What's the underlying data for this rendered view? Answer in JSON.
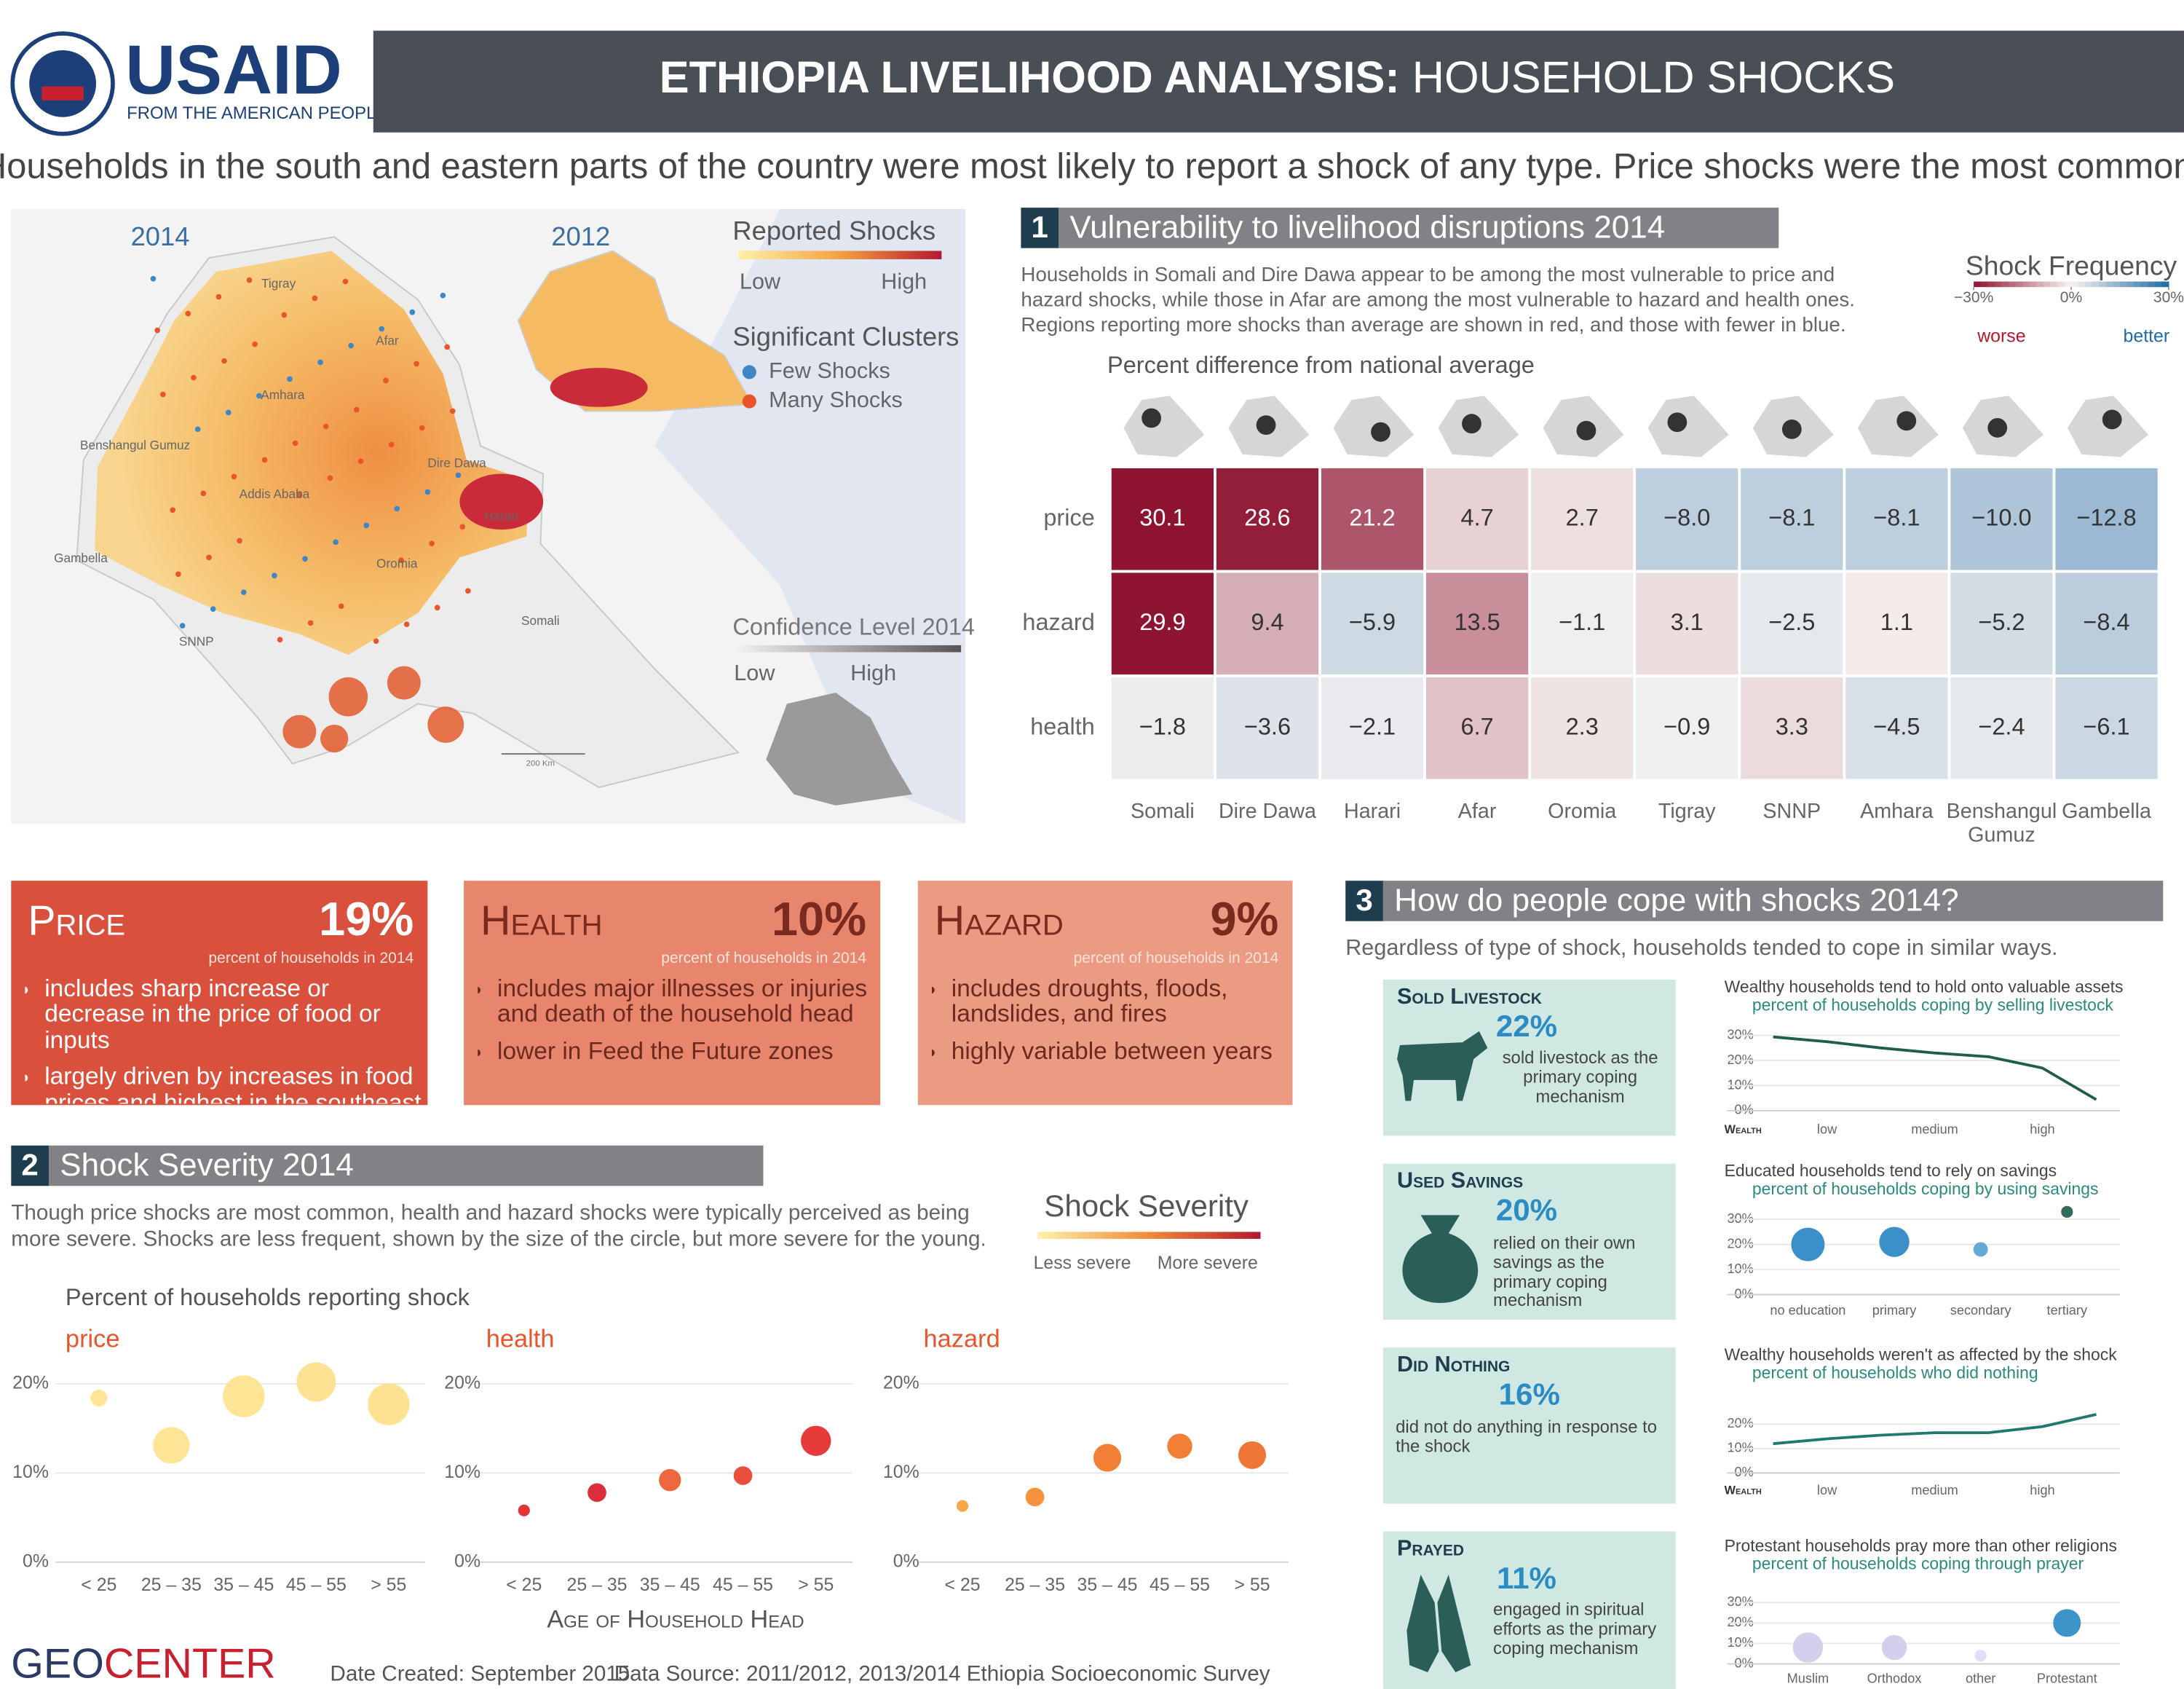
{
  "header": {
    "logo": "USAID",
    "logo_tagline": "FROM THE AMERICAN PEOPLE",
    "title_bold": "ETHIOPIA LIVELIHOOD ANALYSIS:",
    "title_rest": "HOUSEHOLD SHOCKS"
  },
  "subtitle": "Households in the south and eastern parts of the country were most likely to report a shock of any type. Price shocks were the most common.",
  "map": {
    "year_left": "2014",
    "year_right": "2012",
    "legend_title": "Reported Shocks",
    "low": "Low",
    "high": "High",
    "clusters_title": "Significant Clusters",
    "few": "Few Shocks",
    "many": "Many Shocks",
    "confidence_title": "Confidence Level 2014",
    "conf_low": "Low",
    "conf_high": "High",
    "regions": [
      "Tigray",
      "Afar",
      "Amhara",
      "Benshangul Gumuz",
      "Addis Ababa",
      "Dire Dawa",
      "Harari",
      "Gambella",
      "Oromia",
      "SNNP",
      "Somali"
    ],
    "scale": "200 Km"
  },
  "section1": {
    "number": "1",
    "title": "Vulnerability to livelihood disruptions 2014",
    "description": [
      "Households in Somali and Dire Dawa appear to be among the most vulnerable to price and",
      "hazard shocks, while those in Afar are among the most vulnerable to hazard and health ones.",
      "Regions reporting more shocks than average are shown in red, and those with fewer in blue."
    ]
  },
  "cards": [
    {
      "title": "Price",
      "pct": "19%",
      "note": "percent of households in 2014",
      "bullets": [
        "includes sharp increase or decrease in the price of food or inputs",
        "largely driven by increases in food prices and highest in the southeast"
      ],
      "color": "#d9513d",
      "title_color": "#ffffff"
    },
    {
      "title": "Health",
      "pct": "10%",
      "note": "percent of households in 2014",
      "bullets": [
        "includes major illnesses or injuries and death of the household head",
        "lower in Feed the Future zones"
      ],
      "color": "#e8866d",
      "title_color": "#7a2a1f"
    },
    {
      "title": "Hazard",
      "pct": "9%",
      "note": "percent of households in 2014",
      "bullets": [
        "includes droughts, floods, landslides, and fires",
        "highly variable between years"
      ],
      "color": "#ea9b82",
      "title_color": "#7a2a1f"
    }
  ],
  "section2": {
    "number": "2",
    "title": "Shock Severity 2014",
    "description": [
      "Though price shocks are most common, health and hazard shocks were typically perceived as being",
      "more severe. Shocks are less frequent, shown by the size of the circle,  but more severe for the young."
    ],
    "legend_title": "Shock Severity",
    "legend_low": "Less severe",
    "legend_high": "More severe",
    "chart_title": "Percent of households reporting shock",
    "x_label": "Age of Household Head"
  },
  "section3": {
    "number": "3",
    "title": "How do people cope with shocks 2014?",
    "description": "Regardless of  type of shock, households tended to cope in similar ways.",
    "cards": [
      {
        "title": "Sold Livestock",
        "pct": "22%",
        "text": "sold livestock as the primary coping mechanism"
      },
      {
        "title": "Used Savings",
        "pct": "20%",
        "text": "relied on their own savings as the primary coping mechanism"
      },
      {
        "title": "Did Nothing",
        "pct": "16%",
        "text": "did not do anything in response to the shock"
      },
      {
        "title": "Prayed",
        "pct": "11%",
        "text": "engaged in spiritual efforts as the primary coping mechanism"
      }
    ]
  },
  "chart_data": [
    {
      "type": "heatmap",
      "title": "Percent difference from national average",
      "legend_title": "Shock Frequency",
      "legend_ticks": [
        {
          "value": -30,
          "label": "−30%"
        },
        {
          "value": 0,
          "label": "0%"
        },
        {
          "value": 30,
          "label": "30%"
        }
      ],
      "legend_low": "worse",
      "legend_high": "better",
      "colors": {
        "worse": "#8e1330",
        "neutral": "#f7f4f2",
        "better": "#1f6aa8"
      },
      "rows": [
        "price",
        "hazard",
        "health"
      ],
      "columns": [
        "Somali",
        "Dire Dawa",
        "Harari",
        "Afar",
        "Oromia",
        "Tigray",
        "SNNP",
        "Amhara",
        "Benshangul Gumuz",
        "Gambella"
      ],
      "values": [
        [
          30.1,
          28.6,
          21.2,
          4.7,
          2.7,
          -8.0,
          -8.1,
          -8.1,
          -10.0,
          -12.8
        ],
        [
          29.9,
          9.4,
          -5.9,
          13.5,
          -1.1,
          3.1,
          -2.5,
          1.1,
          -5.2,
          -8.4
        ],
        [
          -1.8,
          -3.6,
          -2.1,
          6.7,
          2.3,
          -0.9,
          3.3,
          -4.5,
          -2.4,
          -6.1
        ]
      ],
      "value_labels": [
        [
          "30.1",
          "28.6",
          "21.2",
          "4.7",
          "2.7",
          "−8.0",
          "−8.1",
          "−8.1",
          "−10.0",
          "−12.8"
        ],
        [
          "29.9",
          "9.4",
          "−5.9",
          "13.5",
          "−1.1",
          "3.1",
          "−2.5",
          "1.1",
          "−5.2",
          "−8.4"
        ],
        [
          "−1.8",
          "−3.6",
          "−2.1",
          "6.7",
          "2.3",
          "−0.9",
          "3.3",
          "−4.5",
          "−2.4",
          "−6.1"
        ]
      ]
    },
    {
      "type": "bubble",
      "title": "price",
      "categories": [
        "< 25",
        "25 – 35",
        "35 – 45",
        "45 – 55",
        "> 55"
      ],
      "values": [
        18.4,
        13.1,
        18.6,
        20.2,
        17.7
      ],
      "sizes": [
        4,
        19,
        25,
        22,
        25
      ],
      "colors": [
        "#fde38c",
        "#fde38c",
        "#fde38c",
        "#fde08a",
        "#fde08a"
      ],
      "ylim": [
        0,
        21.5
      ],
      "yticks": [
        {
          "value": 0,
          "label": "0%"
        },
        {
          "value": 10,
          "label": "10%"
        },
        {
          "value": 20,
          "label": "20%"
        }
      ],
      "grid": true
    },
    {
      "type": "bubble",
      "title": "health",
      "categories": [
        "< 25",
        "25 – 35",
        "35 – 45",
        "45 – 55",
        "> 55"
      ],
      "values": [
        5.8,
        7.8,
        9.2,
        9.7,
        13.6
      ],
      "sizes": [
        2,
        5,
        7,
        5,
        13
      ],
      "colors": [
        "#e0242a",
        "#d81e2a",
        "#ee5a2e",
        "#e8402a",
        "#e52a2a"
      ],
      "ylim": [
        0,
        21.5
      ],
      "yticks": [
        {
          "value": 0,
          "label": "0%"
        },
        {
          "value": 10,
          "label": "10%"
        },
        {
          "value": 20,
          "label": "20%"
        }
      ],
      "grid": true
    },
    {
      "type": "bubble",
      "title": "hazard",
      "categories": [
        "< 25",
        "25 – 35",
        "35 – 45",
        "45 – 55",
        "> 55"
      ],
      "values": [
        6.3,
        7.3,
        11.7,
        13.0,
        12.0
      ],
      "sizes": [
        2,
        5,
        11,
        9,
        11
      ],
      "colors": [
        "#f7a03a",
        "#f58a2e",
        "#f07525",
        "#f07525",
        "#ee6a24"
      ],
      "ylim": [
        0,
        21.5
      ],
      "yticks": [
        {
          "value": 0,
          "label": "0%"
        },
        {
          "value": 10,
          "label": "10%"
        },
        {
          "value": 20,
          "label": "20%"
        }
      ],
      "grid": true
    },
    {
      "type": "line",
      "title": "Wealthy households tend to hold onto valuable assets",
      "subtitle": "percent of households coping by selling livestock",
      "x_label": "Wealth",
      "x": [
        0,
        1,
        2,
        3,
        4,
        5,
        6
      ],
      "values": [
        29.4,
        27.5,
        25,
        23,
        21.5,
        17,
        4.4
      ],
      "color": "#1f5e4f",
      "xlim": [
        0,
        6
      ],
      "xticks": [
        {
          "value": 1,
          "label": "low"
        },
        {
          "value": 3,
          "label": "medium"
        },
        {
          "value": 5,
          "label": "high"
        }
      ],
      "ylim": [
        0,
        30
      ],
      "yticks": [
        {
          "value": 0,
          "label": "0%"
        },
        {
          "value": 10,
          "label": "10%"
        },
        {
          "value": 20,
          "label": "20%"
        },
        {
          "value": 30,
          "label": "30%"
        }
      ],
      "grid": true
    },
    {
      "type": "bubble",
      "title": "Educated households tend to rely on savings",
      "subtitle": "percent of households coping by using savings",
      "categories": [
        "no education",
        "primary",
        "secondary",
        "tertiary"
      ],
      "values": [
        20,
        21,
        18,
        33
      ],
      "sizes": [
        16,
        13,
        3,
        2
      ],
      "colors": [
        "#2b87c4",
        "#2b87c4",
        "#5aa3d4",
        "#1f5e4f"
      ],
      "ylim": [
        0,
        30
      ],
      "yticks": [
        {
          "value": 0,
          "label": "0%"
        },
        {
          "value": 10,
          "label": "10%"
        },
        {
          "value": 20,
          "label": "20%"
        },
        {
          "value": 30,
          "label": "30%"
        }
      ],
      "grid": true
    },
    {
      "type": "line",
      "title": "Wealthy households weren't as affected by the shock",
      "subtitle": "percent of households who did nothing",
      "x_label": "Wealth",
      "x": [
        0,
        1,
        2,
        3,
        4,
        5,
        6
      ],
      "values": [
        12,
        14,
        15.5,
        16.5,
        16.5,
        19,
        24
      ],
      "color": "#1f7a6e",
      "xlim": [
        0,
        6
      ],
      "xticks": [
        {
          "value": 1,
          "label": "low"
        },
        {
          "value": 3,
          "label": "medium"
        },
        {
          "value": 5,
          "label": "high"
        }
      ],
      "ylim": [
        0,
        20
      ],
      "yticks": [
        {
          "value": 0,
          "label": "0%"
        },
        {
          "value": 10,
          "label": "10%"
        },
        {
          "value": 20,
          "label": "20%"
        }
      ],
      "grid": true
    },
    {
      "type": "bubble",
      "title": "Protestant households pray more than other religions",
      "subtitle": "percent of households coping through prayer",
      "categories": [
        "Muslim",
        "Orthodox",
        "other",
        "Protestant"
      ],
      "values": [
        8,
        8,
        4,
        20
      ],
      "sizes": [
        13,
        9,
        2,
        11
      ],
      "colors": [
        "#cfcbea",
        "#cfcbea",
        "#dedcf0",
        "#2b8cc4"
      ],
      "ylim": [
        0,
        30
      ],
      "yticks": [
        {
          "value": 0,
          "label": "0%"
        },
        {
          "value": 10,
          "label": "10%"
        },
        {
          "value": 20,
          "label": "20%"
        },
        {
          "value": 30,
          "label": "30%"
        }
      ],
      "grid": true
    }
  ],
  "footer": {
    "logo_geo": "GEO",
    "logo_center": "CENTER",
    "date": "Date Created: September 2015",
    "source": "Data Source: 2011/2012, 2013/2014 Ethiopia Socioeconomic Survey"
  }
}
